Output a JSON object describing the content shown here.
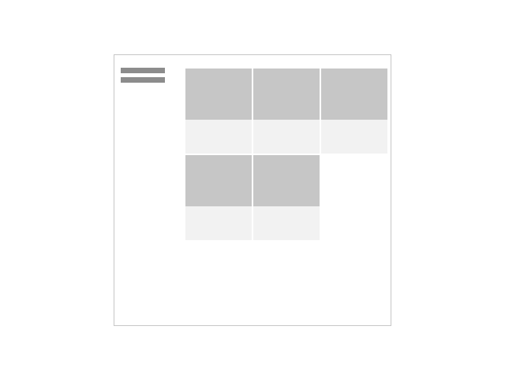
{
  "app": {
    "title": ""
  },
  "menu": {
    "icon": "hamburger-menu-icon"
  },
  "gallery": {
    "items": [
      {
        "caption": ""
      },
      {
        "caption": ""
      },
      {
        "caption": ""
      },
      {
        "caption": ""
      },
      {
        "caption": ""
      }
    ]
  },
  "colors": {
    "frame_border": "#c6c6c6",
    "menu_bar": "#8c8c8c",
    "thumbnail": "#c6c6c6",
    "caption_bg": "#f2f2f2"
  }
}
